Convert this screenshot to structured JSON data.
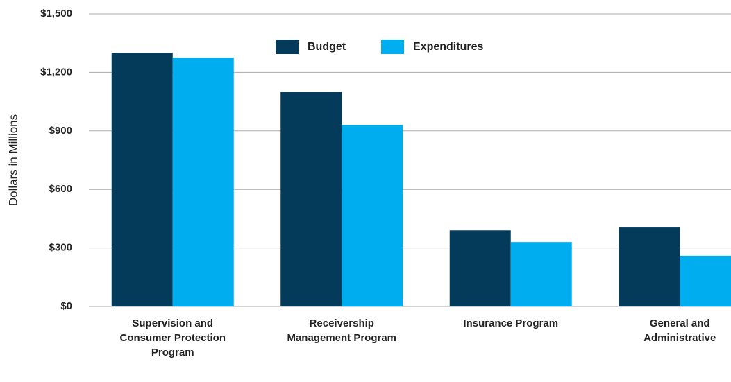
{
  "chart_data": {
    "type": "bar",
    "y_axis_label": "Dollars in Millions",
    "categories": [
      "Supervision and Consumer Protection Program",
      "Receivership Management Program",
      "Insurance Program",
      "General and Administrative"
    ],
    "series": [
      {
        "name": "Budget",
        "color": "#043a5a",
        "values": [
          1300,
          1100,
          390,
          405
        ]
      },
      {
        "name": "Expenditures",
        "color": "#00adee",
        "values": [
          1275,
          930,
          330,
          260
        ]
      }
    ],
    "ylim": [
      0,
      1500
    ],
    "yticks": [
      {
        "value": 0,
        "label": "$0"
      },
      {
        "value": 300,
        "label": "$300"
      },
      {
        "value": 600,
        "label": "$600"
      },
      {
        "value": 900,
        "label": "$900"
      },
      {
        "value": 1200,
        "label": "$1,200"
      },
      {
        "value": 1500,
        "label": "$1,500"
      }
    ],
    "grid": true
  }
}
